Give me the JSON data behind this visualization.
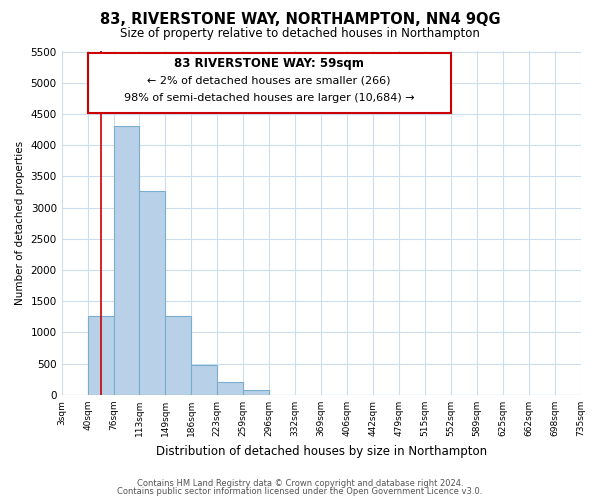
{
  "title": "83, RIVERSTONE WAY, NORTHAMPTON, NN4 9QG",
  "subtitle": "Size of property relative to detached houses in Northampton",
  "xlabel": "Distribution of detached houses by size in Northampton",
  "ylabel": "Number of detached properties",
  "bar_color": "#b8d0e8",
  "bar_edge_color": "#7aaed0",
  "highlight_color": "#cc0000",
  "background_color": "#ffffff",
  "grid_color": "#ccdded",
  "bin_labels": [
    "3sqm",
    "40sqm",
    "76sqm",
    "113sqm",
    "149sqm",
    "186sqm",
    "223sqm",
    "259sqm",
    "296sqm",
    "332sqm",
    "369sqm",
    "406sqm",
    "442sqm",
    "479sqm",
    "515sqm",
    "552sqm",
    "589sqm",
    "625sqm",
    "662sqm",
    "698sqm",
    "735sqm"
  ],
  "bar_values": [
    0,
    1270,
    4300,
    3270,
    1270,
    480,
    200,
    75,
    0,
    0,
    0,
    0,
    0,
    0,
    0,
    0,
    0,
    0,
    0,
    0
  ],
  "ylim": [
    0,
    5500
  ],
  "yticks": [
    0,
    500,
    1000,
    1500,
    2000,
    2500,
    3000,
    3500,
    4000,
    4500,
    5000,
    5500
  ],
  "annotation_title": "83 RIVERSTONE WAY: 59sqm",
  "annotation_line1": "← 2% of detached houses are smaller (266)",
  "annotation_line2": "98% of semi-detached houses are larger (10,684) →",
  "vline_x": 1.5,
  "footer_line1": "Contains HM Land Registry data © Crown copyright and database right 2024.",
  "footer_line2": "Contains public sector information licensed under the Open Government Licence v3.0."
}
